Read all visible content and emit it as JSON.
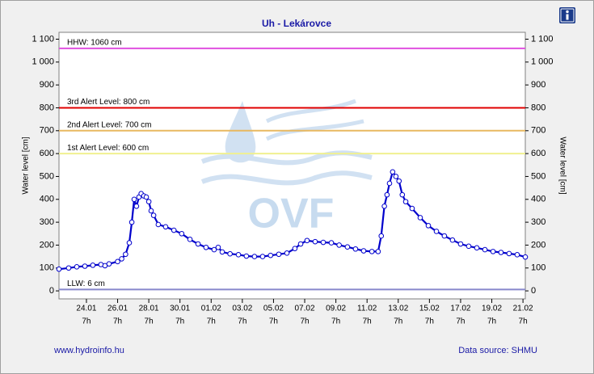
{
  "chart_data": {
    "type": "line",
    "title": "Uh - Lekárovce",
    "ylabel": "Water level [cm]",
    "y2label": "Water level [cm]",
    "watermark": "OVF",
    "footer_left": "www.hydroinfo.hu",
    "footer_right": "Data source: SHMU",
    "xlim": [
      21.53,
      51.44
    ],
    "ylim": [
      -35,
      1130
    ],
    "yticks": [
      0,
      100,
      200,
      300,
      400,
      500,
      600,
      700,
      800,
      900,
      {
        "value": 1000,
        "label": "1 000"
      },
      {
        "value": 1100,
        "label": "1 100"
      }
    ],
    "xticks": [
      {
        "value": 23.29,
        "label": "24.01",
        "hour": "7h"
      },
      {
        "value": 25.29,
        "label": "26.01",
        "hour": "7h"
      },
      {
        "value": 27.29,
        "label": "28.01",
        "hour": "7h"
      },
      {
        "value": 29.29,
        "label": "30.01",
        "hour": "7h"
      },
      {
        "value": 31.29,
        "label": "01.02",
        "hour": "7h"
      },
      {
        "value": 33.29,
        "label": "03.02",
        "hour": "7h"
      },
      {
        "value": 35.29,
        "label": "05.02",
        "hour": "7h"
      },
      {
        "value": 37.29,
        "label": "07.02",
        "hour": "7h"
      },
      {
        "value": 39.29,
        "label": "09.02",
        "hour": "7h"
      },
      {
        "value": 41.29,
        "label": "11.02",
        "hour": "7h"
      },
      {
        "value": 43.29,
        "label": "13.02",
        "hour": "7h"
      },
      {
        "value": 45.29,
        "label": "15.02",
        "hour": "7h"
      },
      {
        "value": 47.29,
        "label": "17.02",
        "hour": "7h"
      },
      {
        "value": 49.29,
        "label": "19.02",
        "hour": "7h"
      },
      {
        "value": 51.29,
        "label": "21.02",
        "hour": "7h"
      }
    ],
    "reference_lines": [
      {
        "label": "HHW: 1060 cm",
        "value": 1060,
        "color": "#e050e0"
      },
      {
        "label": "3rd Alert Level: 800 cm",
        "value": 800,
        "color": "#e00000"
      },
      {
        "label": "2nd Alert Level: 700 cm",
        "value": 700,
        "color": "#e8b860"
      },
      {
        "label": "1st Alert Level: 600 cm",
        "value": 600,
        "color": "#f0f090"
      },
      {
        "label": "LLW: 6 cm",
        "value": 6,
        "color": "#8888cc"
      }
    ],
    "series": [
      {
        "name": "Water level",
        "color": "#0000cc",
        "x": [
          21.53,
          22.15,
          22.67,
          23.19,
          23.7,
          24.22,
          24.48,
          24.74,
          25.29,
          25.55,
          25.8,
          26.04,
          26.2,
          26.35,
          26.5,
          26.66,
          26.8,
          26.97,
          27.13,
          27.29,
          27.44,
          27.6,
          27.9,
          28.37,
          28.9,
          29.4,
          29.93,
          30.45,
          30.96,
          31.48,
          31.74,
          32.0,
          32.5,
          33.04,
          33.55,
          34.07,
          34.59,
          35.1,
          35.63,
          36.15,
          36.66,
          37.03,
          37.44,
          37.96,
          38.48,
          39.0,
          39.5,
          40.03,
          40.55,
          41.07,
          41.6,
          42.0,
          42.2,
          42.4,
          42.57,
          42.73,
          42.93,
          43.14,
          43.34,
          43.55,
          43.77,
          44.18,
          44.7,
          45.22,
          45.74,
          46.25,
          46.77,
          47.29,
          47.81,
          48.33,
          48.85,
          49.37,
          49.88,
          50.4,
          50.92,
          51.44
        ],
        "values": [
          95,
          100,
          105,
          108,
          112,
          115,
          110,
          118,
          128,
          140,
          160,
          210,
          300,
          400,
          370,
          410,
          425,
          415,
          410,
          390,
          350,
          330,
          290,
          280,
          265,
          250,
          225,
          205,
          190,
          180,
          190,
          170,
          162,
          158,
          152,
          150,
          150,
          155,
          160,
          165,
          185,
          205,
          220,
          215,
          212,
          210,
          200,
          192,
          183,
          175,
          172,
          172,
          240,
          370,
          420,
          470,
          520,
          500,
          480,
          420,
          390,
          360,
          320,
          285,
          260,
          240,
          222,
          205,
          195,
          188,
          180,
          172,
          168,
          163,
          158,
          148
        ]
      }
    ]
  }
}
